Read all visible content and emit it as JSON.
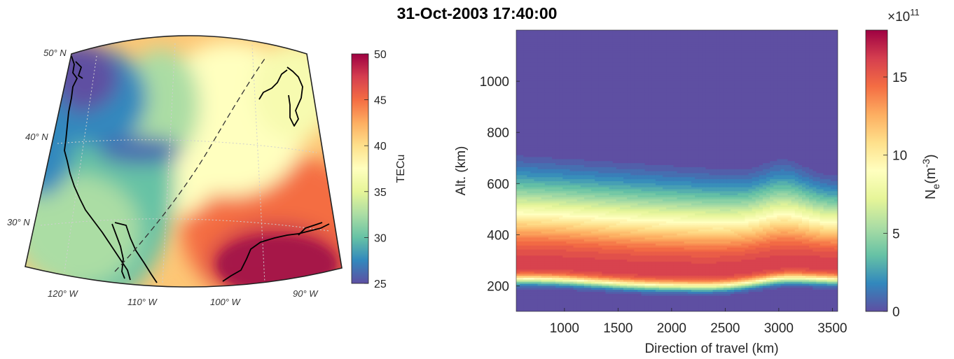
{
  "figure_title": "31-Oct-2003 17:40:00",
  "chart_data": [
    {
      "type": "heatmap",
      "kind": "map",
      "projection": "conic",
      "lat_ticks": [
        {
          "value": 50,
          "label": "50° N"
        },
        {
          "value": 40,
          "label": "40° N"
        },
        {
          "value": 30,
          "label": "30° N"
        }
      ],
      "lon_ticks": [
        {
          "value": -120,
          "label": "120° W"
        },
        {
          "value": -110,
          "label": "110° W"
        },
        {
          "value": -100,
          "label": "100° W"
        },
        {
          "value": -90,
          "label": "90° W"
        }
      ],
      "map_extent": {
        "lon": [
          -126,
          -86
        ],
        "lat": [
          24,
          52
        ]
      },
      "colorbar": {
        "label": "TECu",
        "ticks": [
          25,
          30,
          35,
          40,
          45,
          50
        ],
        "range": [
          25,
          50
        ],
        "colormap": "Spectral"
      },
      "grid": true,
      "track": "dashed line"
    },
    {
      "type": "heatmap",
      "kind": "filled-contour",
      "xlabel": "Direction of travel (km)",
      "ylabel": "Alt. (km)",
      "xticks": [
        1000,
        1500,
        2000,
        2500,
        3000,
        3500
      ],
      "yticks": [
        200,
        400,
        600,
        800,
        1000
      ],
      "xlim": [
        550,
        3550
      ],
      "ylim": [
        100,
        1200
      ],
      "peak_altitude_km": 280,
      "colorbar": {
        "label": "N",
        "label_sub": "e",
        "unit_base": "(m",
        "unit_sup": "-3",
        "unit_close": ")",
        "exponent_base": "×10",
        "exponent": "11",
        "ticks": [
          0,
          5,
          10,
          15
        ],
        "range": [
          0,
          18
        ],
        "colormap": "Spectral"
      }
    }
  ],
  "colors": {
    "spectral": [
      "#5e4fa2",
      "#3288bd",
      "#66c2a5",
      "#abdda4",
      "#e6f598",
      "#ffffbf",
      "#fee08b",
      "#fdae61",
      "#f46d43",
      "#d53e4f",
      "#9e0142"
    ]
  }
}
